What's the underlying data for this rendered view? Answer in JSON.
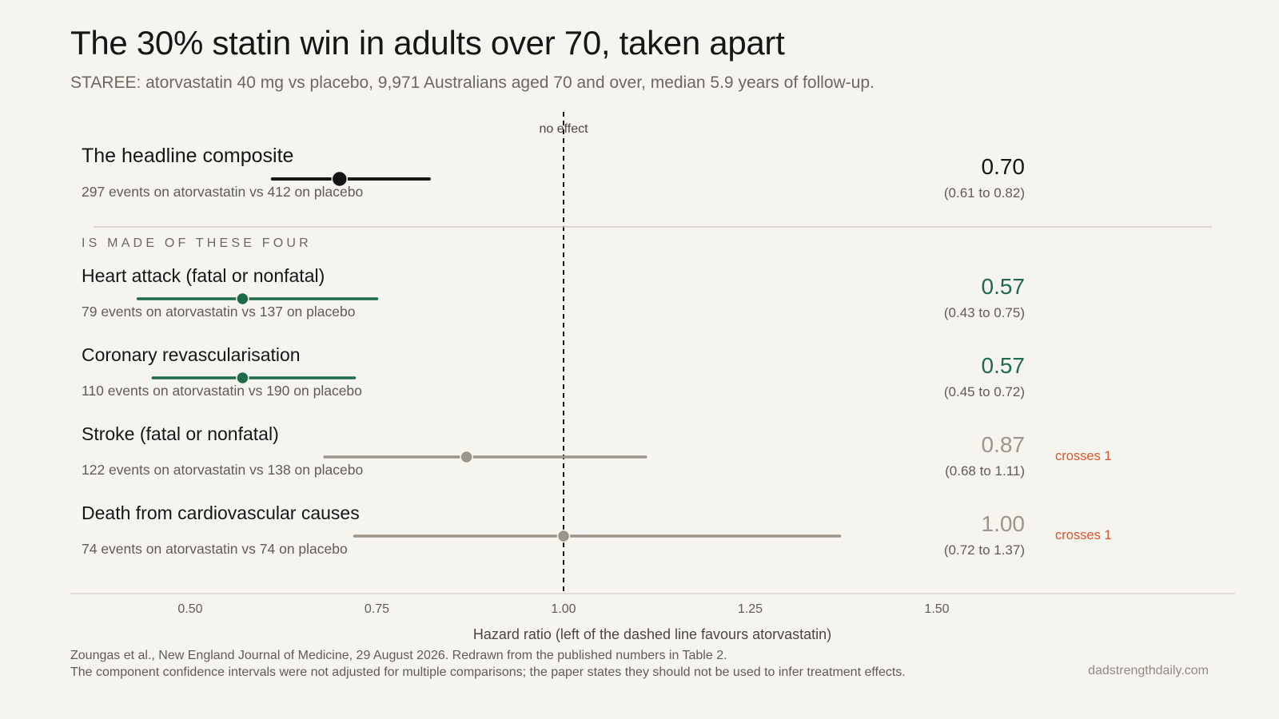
{
  "header": {
    "title": "The 30% statin win in adults over 70, taken apart",
    "subtitle": "STAREE: atorvastatin 40 mg vs placebo, 9,971 Australians aged 70 and over, median 5.9 years of follow-up."
  },
  "chart_data": {
    "type": "forest",
    "x_axis": {
      "label": "Hazard ratio (left of the dashed line favours atorvastatin)",
      "range": [
        0.34,
        1.94
      ],
      "ticks": [
        0.5,
        0.75,
        1.0,
        1.25,
        1.5
      ],
      "tick_labels": [
        "0.50",
        "0.75",
        "1.00",
        "1.25",
        "1.50"
      ]
    },
    "reference_line": {
      "value": 1.0,
      "label": "no effect"
    },
    "section_label": "IS MADE OF THESE FOUR",
    "headline": {
      "name": "The headline composite",
      "events_text": "297 events on atorvastatin  vs  412 on placebo",
      "hr": 0.7,
      "hr_label": "0.70",
      "ci_low": 0.61,
      "ci_high": 0.82,
      "ci_label": "(0.61 to 0.82)",
      "crosses_label": "",
      "color": "#161616"
    },
    "components": [
      {
        "name": "Heart attack (fatal or nonfatal)",
        "events_text": "79 events on atorvastatin  vs  137 on placebo",
        "hr": 0.57,
        "hr_label": "0.57",
        "ci_low": 0.43,
        "ci_high": 0.75,
        "ci_label": "(0.43 to 0.75)",
        "crosses_label": "",
        "color": "#1e6b4a"
      },
      {
        "name": "Coronary revascularisation",
        "events_text": "110 events on atorvastatin  vs  190 on placebo",
        "hr": 0.57,
        "hr_label": "0.57",
        "ci_low": 0.45,
        "ci_high": 0.72,
        "ci_label": "(0.45 to 0.72)",
        "crosses_label": "",
        "color": "#1e6b4a"
      },
      {
        "name": "Stroke (fatal or nonfatal)",
        "events_text": "122 events on atorvastatin  vs  138 on placebo",
        "hr": 0.87,
        "hr_label": "0.87",
        "ci_low": 0.68,
        "ci_high": 1.11,
        "ci_label": "(0.68 to 1.11)",
        "crosses_label": "crosses 1",
        "color": "#9c958b"
      },
      {
        "name": "Death from cardiovascular causes",
        "events_text": "74 events on atorvastatin  vs  74 on placebo",
        "hr": 1.0,
        "hr_label": "1.00",
        "ci_low": 0.72,
        "ci_high": 1.37,
        "ci_label": "(0.72 to 1.37)",
        "crosses_label": "crosses 1",
        "color": "#9c958b"
      }
    ],
    "colors": {
      "significant": "#1e6b4a",
      "not_significant": "#9c958b",
      "crosses": "#d9562b",
      "headline": "#161616"
    }
  },
  "footer": {
    "source": "Zoungas et al., New England Journal of Medicine, 29 August 2026. Redrawn from the published numbers in Table 2.",
    "note": "The component confidence intervals were not adjusted for multiple comparisons; the paper states they should not be used to infer treatment effects.",
    "site": "dadstrengthdaily.com"
  }
}
